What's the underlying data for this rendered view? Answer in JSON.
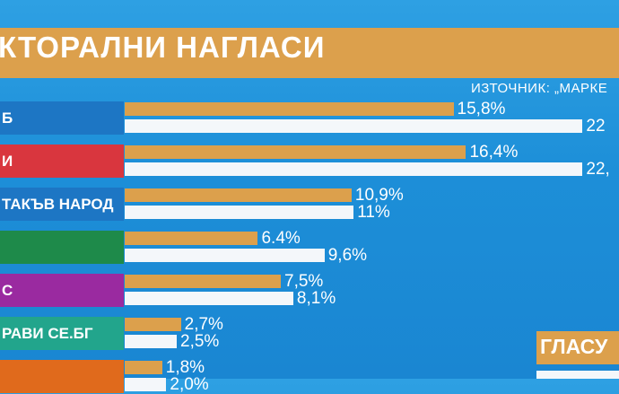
{
  "header": {
    "title": "КТОРАЛНИ НАГЛАСИ",
    "source": "ИЗТОЧНИК: „МАРКЕ"
  },
  "side_label": "ГЛАСУ",
  "chart_data": {
    "type": "bar",
    "orientation": "horizontal",
    "categories": [
      "Б",
      "И",
      "ТАКЪВ НАРОД",
      "",
      "С",
      "РАВИ СЕ.БГ",
      ""
    ],
    "category_colors": [
      "#1d76c4",
      "#d9363e",
      "#1d76c4",
      "#1e8a4a",
      "#9a2aa0",
      "#22a58c",
      "#e06a1c"
    ],
    "series": [
      {
        "color": "#dca04c",
        "values": [
          15.8,
          16.4,
          10.9,
          6.4,
          7.5,
          2.7,
          1.8
        ],
        "labels": [
          "15,8%",
          "16,4%",
          "10,9%",
          "6.4%",
          "7,5%",
          "2,7%",
          "1,8%"
        ]
      },
      {
        "color": "#f4f7fa",
        "values": [
          22,
          22,
          11,
          9.6,
          8.1,
          2.5,
          2.0
        ],
        "labels": [
          "22",
          "22,",
          "11%",
          "9,6%",
          "8,1%",
          "2,5%",
          "2,0%"
        ]
      }
    ],
    "xlim": [
      0,
      28
    ]
  }
}
